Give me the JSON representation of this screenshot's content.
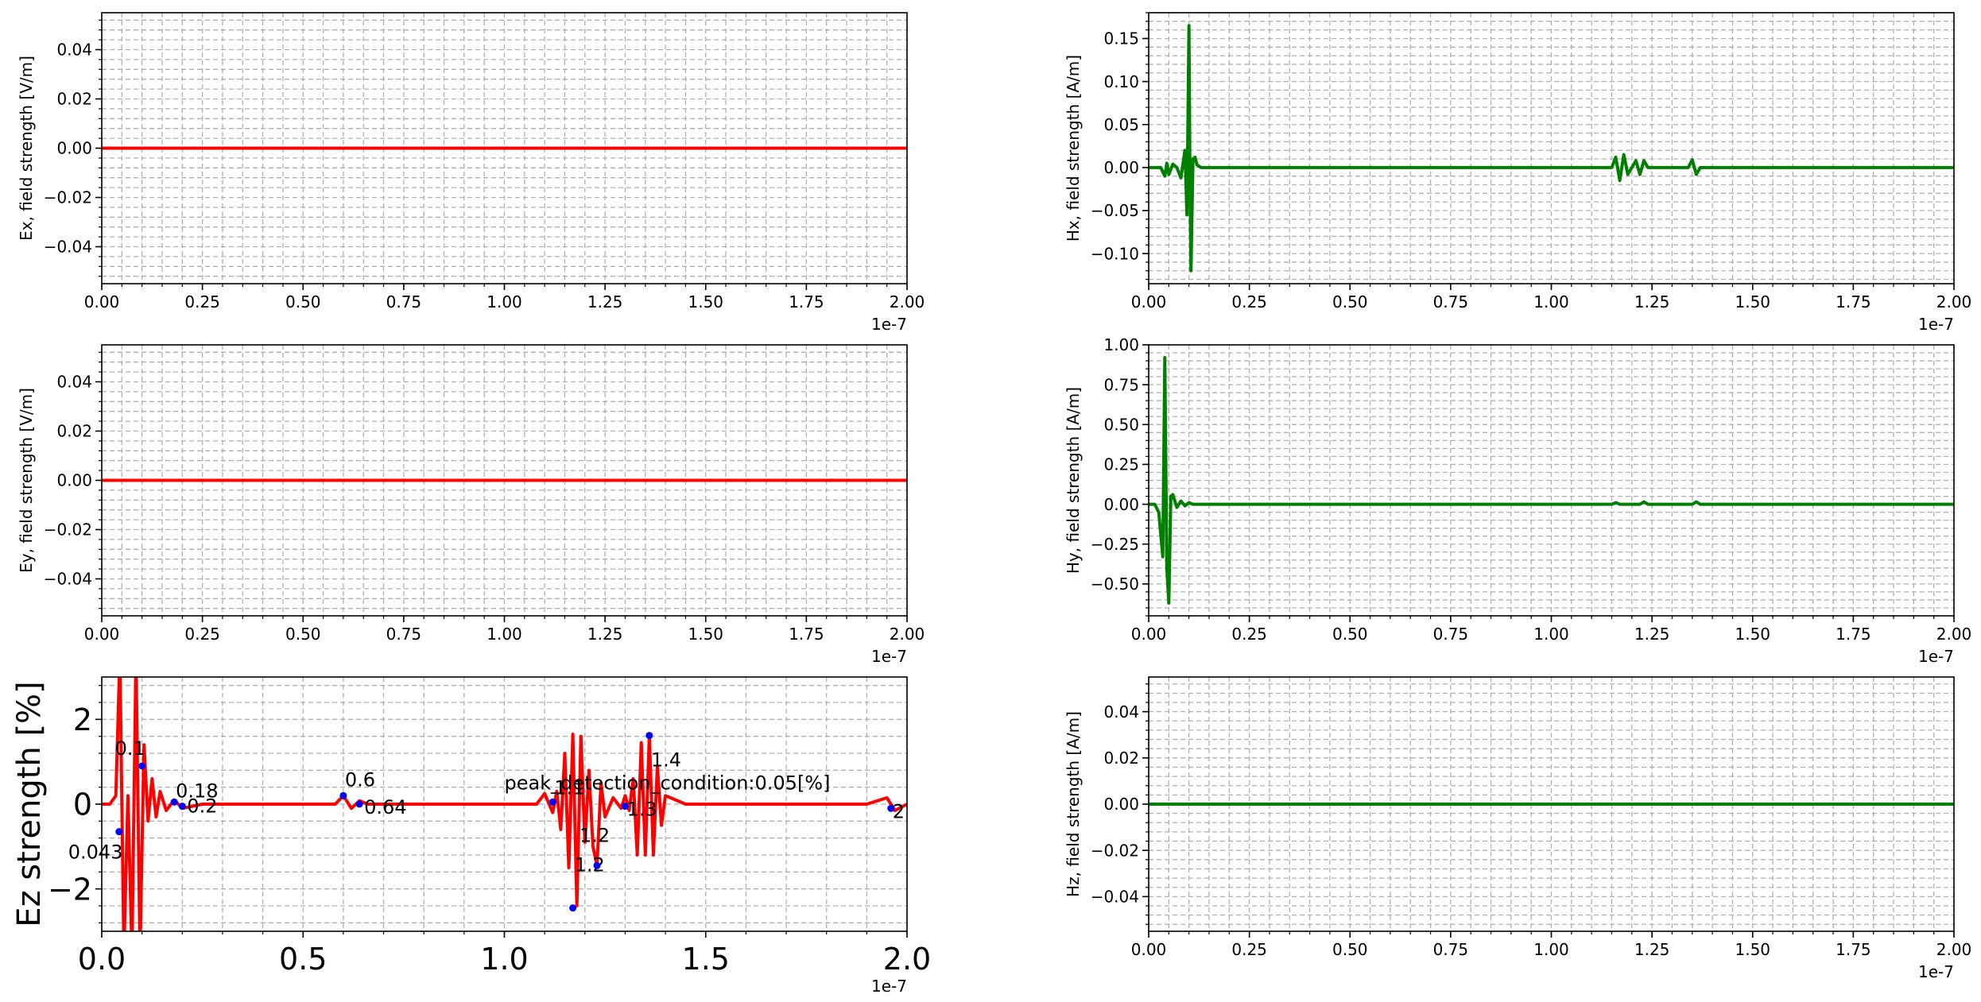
{
  "figure": {
    "offset_label": "1e-7"
  },
  "chart_data": [
    {
      "id": "ex",
      "type": "line",
      "ylabel": "Ex, field strength [V/m]",
      "xlim": [
        0,
        2e-07
      ],
      "ylim": [
        -0.055,
        0.055
      ],
      "xticks": [
        0,
        0.25,
        0.5,
        0.75,
        1.0,
        1.25,
        1.5,
        1.75,
        2.0
      ],
      "xtick_labels": [
        "0.00",
        "0.25",
        "0.50",
        "0.75",
        "1.00",
        "1.25",
        "1.50",
        "1.75",
        "2.00"
      ],
      "yticks": [
        -0.04,
        -0.02,
        0,
        0.02,
        0.04
      ],
      "ytick_labels": [
        "−0.04",
        "−0.02",
        "0.00",
        "0.02",
        "0.04"
      ],
      "x_offset_label": "1e-7",
      "grid": true,
      "grid_style": "dashed, major and minor",
      "series": [
        {
          "color": "#ff0000",
          "x": [
            0,
            2e-07
          ],
          "y": [
            0,
            0
          ]
        }
      ]
    },
    {
      "id": "hx",
      "type": "line",
      "ylabel": "Hx, field strength [A/m]",
      "xlim": [
        0,
        2e-07
      ],
      "ylim": [
        -0.135,
        0.18
      ],
      "xticks": [
        0,
        0.25,
        0.5,
        0.75,
        1.0,
        1.25,
        1.5,
        1.75,
        2.0
      ],
      "xtick_labels": [
        "0.00",
        "0.25",
        "0.50",
        "0.75",
        "1.00",
        "1.25",
        "1.50",
        "1.75",
        "2.00"
      ],
      "yticks": [
        -0.1,
        -0.05,
        0,
        0.05,
        0.1,
        0.15
      ],
      "ytick_labels": [
        "−0.10",
        "−0.05",
        "0.00",
        "0.05",
        "0.10",
        "0.15"
      ],
      "x_offset_label": "1e-7",
      "grid": true,
      "grid_style": "dashed, major and minor",
      "series": [
        {
          "color": "#008000",
          "x": [
            0,
            3e-09,
            4e-09,
            4.5e-09,
            5e-09,
            6e-09,
            7e-09,
            8e-09,
            9e-09,
            9.5e-09,
            1e-08,
            1.02e-08,
            1.05e-08,
            1.1e-08,
            1.15e-08,
            1.2e-08,
            1.3e-08,
            6e-08,
            1.15e-07,
            1.16e-07,
            1.17e-07,
            1.18e-07,
            1.19e-07,
            1.2e-07,
            1.21e-07,
            1.22e-07,
            1.23e-07,
            1.24e-07,
            1.34e-07,
            1.35e-07,
            1.36e-07,
            1.37e-07,
            1.9e-07,
            2e-07
          ],
          "y": [
            0,
            0,
            -0.01,
            0.005,
            -0.008,
            0.004,
            0,
            -0.012,
            0.02,
            -0.055,
            0.165,
            0.02,
            -0.12,
            0.01,
            0.012,
            0.003,
            0,
            0,
            0,
            0.012,
            -0.015,
            0.015,
            -0.008,
            0,
            0.008,
            -0.008,
            0.008,
            0,
            0,
            0.009,
            -0.008,
            0,
            0,
            0
          ]
        }
      ]
    },
    {
      "id": "ey",
      "type": "line",
      "ylabel": "Ey, field strength [V/m]",
      "xlim": [
        0,
        2e-07
      ],
      "ylim": [
        -0.055,
        0.055
      ],
      "xticks": [
        0,
        0.25,
        0.5,
        0.75,
        1.0,
        1.25,
        1.5,
        1.75,
        2.0
      ],
      "xtick_labels": [
        "0.00",
        "0.25",
        "0.50",
        "0.75",
        "1.00",
        "1.25",
        "1.50",
        "1.75",
        "2.00"
      ],
      "yticks": [
        -0.04,
        -0.02,
        0,
        0.02,
        0.04
      ],
      "ytick_labels": [
        "−0.04",
        "−0.02",
        "0.00",
        "0.02",
        "0.04"
      ],
      "x_offset_label": "1e-7",
      "grid": true,
      "grid_style": "dashed, major and minor",
      "series": [
        {
          "color": "#ff0000",
          "x": [
            0,
            2e-07
          ],
          "y": [
            0,
            0
          ]
        }
      ]
    },
    {
      "id": "hy",
      "type": "line",
      "ylabel": "Hy, field strength [A/m]",
      "xlim": [
        0,
        2e-07
      ],
      "ylim": [
        -0.7,
        1.0
      ],
      "xticks": [
        0,
        0.25,
        0.5,
        0.75,
        1.0,
        1.25,
        1.5,
        1.75,
        2.0
      ],
      "xtick_labels": [
        "0.00",
        "0.25",
        "0.50",
        "0.75",
        "1.00",
        "1.25",
        "1.50",
        "1.75",
        "2.00"
      ],
      "yticks": [
        -0.5,
        -0.25,
        0,
        0.25,
        0.5,
        0.75,
        1.0
      ],
      "ytick_labels": [
        "−0.50",
        "−0.25",
        "0.00",
        "0.25",
        "0.50",
        "0.75",
        "1.00"
      ],
      "x_offset_label": "1e-7",
      "grid": true,
      "grid_style": "dashed, major and minor",
      "series": [
        {
          "color": "#008000",
          "x": [
            0,
            1.5e-09,
            2.5e-09,
            3.5e-09,
            4e-09,
            4.5e-09,
            5e-09,
            5.5e-09,
            6e-09,
            7e-09,
            8e-09,
            9e-09,
            1e-08,
            1.1e-08,
            1.3e-08,
            1.15e-07,
            1.16e-07,
            1.17e-07,
            1.22e-07,
            1.23e-07,
            1.24e-07,
            1.35e-07,
            1.36e-07,
            1.37e-07,
            2e-07
          ],
          "y": [
            0,
            0,
            -0.05,
            -0.33,
            0.92,
            -0.4,
            -0.62,
            0.05,
            0.06,
            -0.02,
            0.02,
            -0.01,
            0.01,
            0,
            0,
            0,
            0.01,
            0,
            0,
            0.015,
            0,
            0,
            0.015,
            0,
            0
          ]
        }
      ]
    },
    {
      "id": "ez",
      "type": "line",
      "ylabel": "Ez strength [%]",
      "xlim": [
        0,
        2e-07
      ],
      "ylim": [
        -3,
        3
      ],
      "xticks": [
        0,
        0.5,
        1.0,
        1.5,
        2.0
      ],
      "xtick_labels": [
        "0.0",
        "0.5",
        "1.0",
        "1.5",
        "2.0"
      ],
      "yticks": [
        -2,
        0,
        2
      ],
      "ytick_labels": [
        "−2",
        "0",
        "2"
      ],
      "x_offset_label": "1e-7",
      "grid": true,
      "grid_style": "dashed, major and minor",
      "series": [
        {
          "color": "#ff0000",
          "x": [
            0,
            2e-09,
            3.5e-09,
            4.5e-09,
            5.5e-09,
            6.5e-09,
            7.5e-09,
            8.5e-09,
            9.5e-09,
            1.05e-08,
            1.15e-08,
            1.25e-08,
            1.35e-08,
            1.45e-08,
            1.6e-08,
            1.8e-08,
            2e-08,
            2.5e-08,
            5.8e-08,
            6e-08,
            6.2e-08,
            6.4e-08,
            6.6e-08,
            1.08e-07,
            1.1e-07,
            1.12e-07,
            1.13e-07,
            1.14e-07,
            1.15e-07,
            1.16e-07,
            1.17e-07,
            1.18e-07,
            1.19e-07,
            1.2e-07,
            1.21e-07,
            1.22e-07,
            1.23e-07,
            1.24e-07,
            1.25e-07,
            1.27e-07,
            1.29e-07,
            1.3e-07,
            1.31e-07,
            1.32e-07,
            1.33e-07,
            1.34e-07,
            1.35e-07,
            1.36e-07,
            1.37e-07,
            1.38e-07,
            1.39e-07,
            1.4e-07,
            1.45e-07,
            1.9e-07,
            1.95e-07,
            1.97e-07,
            2e-07
          ],
          "y": [
            0,
            0,
            0.2,
            3.5,
            -3.5,
            0.2,
            -3.5,
            3.5,
            -3.5,
            1.4,
            -0.4,
            0.6,
            -0.3,
            0.3,
            -0.15,
            0.1,
            -0.1,
            0,
            0,
            0.2,
            -0.1,
            0.08,
            0,
            0,
            0.25,
            -0.2,
            0.3,
            -0.6,
            1.2,
            -1.5,
            1.65,
            -2.4,
            1.6,
            -0.9,
            0.8,
            -1.0,
            -1.45,
            0.5,
            -0.3,
            0.15,
            -0.1,
            0.2,
            -0.15,
            0.6,
            -1.2,
            1.45,
            -1.2,
            1.62,
            -1.2,
            0.9,
            -0.5,
            0.2,
            0,
            0,
            0.15,
            -0.15,
            0
          ]
        }
      ],
      "peaks": [
        {
          "x": 4.3e-09,
          "y": -0.65,
          "label": "0.043"
        },
        {
          "x": 1e-08,
          "y": 0.9,
          "label": "0.1"
        },
        {
          "x": 1.8e-08,
          "y": 0.05,
          "label": "0.18"
        },
        {
          "x": 2e-08,
          "y": -0.05,
          "label": "0.2"
        },
        {
          "x": 6e-08,
          "y": 0.2,
          "label": "0.6"
        },
        {
          "x": 6.4e-08,
          "y": 0.0,
          "label": "0.64"
        },
        {
          "x": 1.12e-07,
          "y": 0.05,
          "label": "1.1"
        },
        {
          "x": 1.17e-07,
          "y": -2.45,
          "label": "1.2"
        },
        {
          "x": 1.23e-07,
          "y": -1.45,
          "label": "1.2"
        },
        {
          "x": 1.3e-07,
          "y": -0.05,
          "label": "1.3"
        },
        {
          "x": 1.36e-07,
          "y": 1.62,
          "label": "1.4"
        },
        {
          "x": 1.96e-07,
          "y": -0.1,
          "label": "2"
        }
      ],
      "annotation": "peak_detection_condition:0.05[%]"
    },
    {
      "id": "hz",
      "type": "line",
      "ylabel": "Hz, field strength [A/m]",
      "xlim": [
        0,
        2e-07
      ],
      "ylim": [
        -0.055,
        0.055
      ],
      "xticks": [
        0,
        0.25,
        0.5,
        0.75,
        1.0,
        1.25,
        1.5,
        1.75,
        2.0
      ],
      "xtick_labels": [
        "0.00",
        "0.25",
        "0.50",
        "0.75",
        "1.00",
        "1.25",
        "1.50",
        "1.75",
        "2.00"
      ],
      "yticks": [
        -0.04,
        -0.02,
        0,
        0.02,
        0.04
      ],
      "ytick_labels": [
        "−0.04",
        "−0.02",
        "0.00",
        "0.02",
        "0.04"
      ],
      "x_offset_label": "1e-7",
      "grid": true,
      "grid_style": "dashed, major and minor",
      "series": [
        {
          "color": "#008000",
          "x": [
            0,
            2e-07
          ],
          "y": [
            0,
            0
          ]
        }
      ]
    }
  ]
}
